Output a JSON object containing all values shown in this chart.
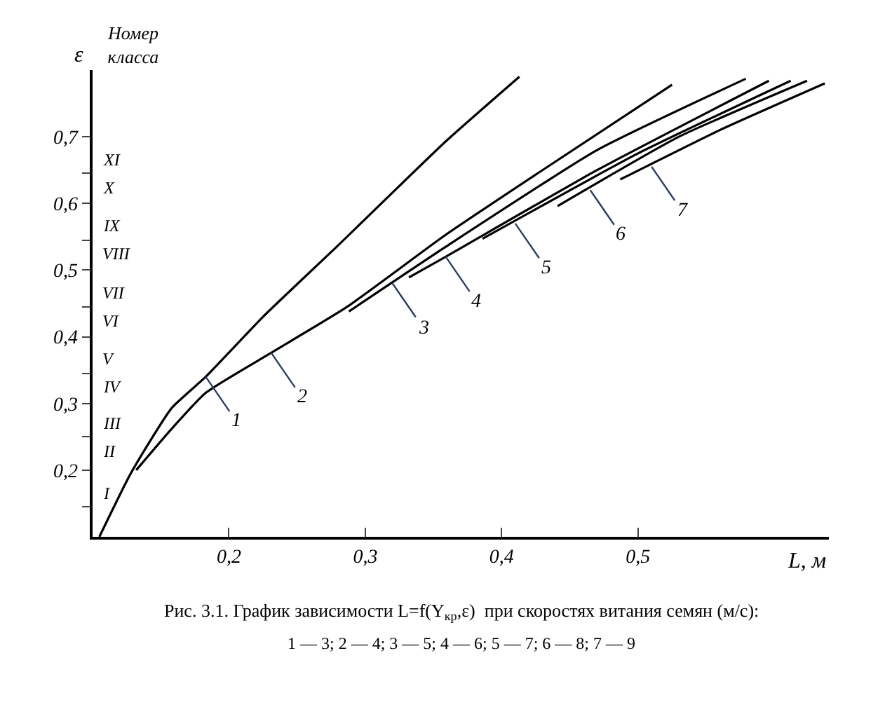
{
  "chart_data": {
    "type": "line",
    "xlabel": "L, м",
    "ylabel": "ε",
    "xlim": [
      0.1,
      0.64
    ],
    "ylim": [
      0.1,
      0.8
    ],
    "xticks": [
      {
        "value": 0.2,
        "label": "0,2"
      },
      {
        "value": 0.3,
        "label": "0,3"
      },
      {
        "value": 0.4,
        "label": "0,4"
      },
      {
        "value": 0.5,
        "label": "0,5"
      }
    ],
    "yticks": [
      {
        "value": 0.2,
        "label": "0,2"
      },
      {
        "value": 0.3,
        "label": "0,3"
      },
      {
        "value": 0.4,
        "label": "0,4"
      },
      {
        "value": 0.5,
        "label": "0,5"
      },
      {
        "value": 0.6,
        "label": "0,6"
      },
      {
        "value": 0.7,
        "label": "0,7"
      },
      {
        "value": 0.145,
        "label": null
      },
      {
        "value": 0.25,
        "label": null
      },
      {
        "value": 0.345,
        "label": null
      },
      {
        "value": 0.445,
        "label": null
      },
      {
        "value": 0.545,
        "label": null
      },
      {
        "value": 0.645,
        "label": null
      }
    ],
    "marker": "none",
    "line_style": "solid",
    "series": [
      {
        "color": "#000000",
        "x": [
          0.105,
          0.128,
          0.158,
          0.183,
          0.225,
          0.279,
          0.359,
          0.413
        ],
        "values": [
          0.1,
          0.195,
          0.293,
          0.34,
          0.43,
          0.535,
          0.693,
          0.79
        ]
      },
      {
        "color": "#000000",
        "x": [
          0.132,
          0.158,
          0.183,
          0.231,
          0.286,
          0.359,
          0.43,
          0.525
        ],
        "values": [
          0.2,
          0.262,
          0.316,
          0.376,
          0.444,
          0.553,
          0.65,
          0.778
        ]
      },
      {
        "color": "#000000",
        "x": [
          0.288,
          0.359,
          0.47,
          0.579
        ],
        "values": [
          0.438,
          0.535,
          0.68,
          0.787
        ]
      },
      {
        "color": "#000000",
        "x": [
          0.332,
          0.359,
          0.47,
          0.596
        ],
        "values": [
          0.489,
          0.52,
          0.65,
          0.784
        ]
      },
      {
        "color": "#000000",
        "x": [
          0.386,
          0.5,
          0.612
        ],
        "values": [
          0.547,
          0.675,
          0.784
        ]
      },
      {
        "color": "#000000",
        "x": [
          0.441,
          0.53,
          0.624
        ],
        "values": [
          0.596,
          0.7,
          0.784
        ]
      },
      {
        "color": "#000000",
        "x": [
          0.487,
          0.56,
          0.637
        ],
        "values": [
          0.636,
          0.71,
          0.78
        ]
      }
    ],
    "annotations": [
      {
        "text": "1",
        "x": 0.183,
        "y": 0.34
      },
      {
        "text": "2",
        "x": 0.231,
        "y": 0.376
      },
      {
        "text": "3",
        "x": 0.32,
        "y": 0.48
      },
      {
        "text": "4",
        "x": 0.359,
        "y": 0.52
      },
      {
        "text": "5",
        "x": 0.41,
        "y": 0.57
      },
      {
        "text": "6",
        "x": 0.465,
        "y": 0.62
      },
      {
        "text": "7",
        "x": 0.51,
        "y": 0.655
      },
      "Номер класса",
      "I",
      "II",
      "III",
      "IV",
      "V",
      "VI",
      "VII",
      "VIII",
      "IX",
      "X",
      "XI",
      "Рис. 3.1. График зависимости L=f(Y$_{кр}$,ε)  при скоростях витания семян (м/с):",
      "1 — 3; 2 — 4; 3 — 5; 4 — 6; 5 — 7; 6 — 8; 7 — 9"
    ]
  }
}
